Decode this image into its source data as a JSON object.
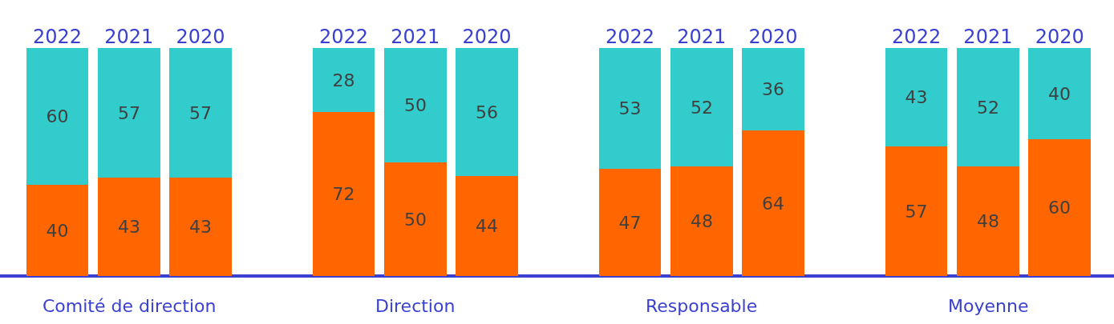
{
  "chart_data": {
    "type": "bar",
    "stacked": true,
    "data_labels": true,
    "tick_labels": "x",
    "categories": [
      "2022",
      "2021",
      "2020",
      "2022",
      "2021",
      "2020",
      "2022",
      "2021",
      "2020",
      "2022",
      "2021",
      "2020"
    ],
    "series": [
      {
        "color": "#ff6600",
        "values": [
          40,
          43,
          43,
          72,
          50,
          44,
          47,
          48,
          64,
          57,
          48,
          60
        ]
      },
      {
        "color": "#33cccc",
        "values": [
          60,
          57,
          57,
          28,
          50,
          56,
          53,
          52,
          36,
          43,
          52,
          40
        ]
      }
    ],
    "annotations": [
      "Comité de direction",
      "Direction",
      "Responsable",
      "Moyenne"
    ]
  }
}
